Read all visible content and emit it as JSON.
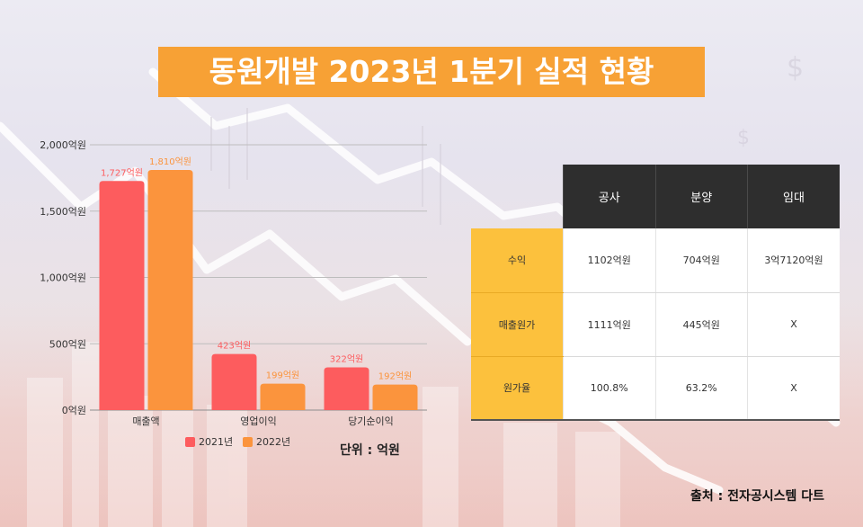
{
  "title": "동원개발 2023년 1분기 실적 현황",
  "unit_label": "단위 : 억원",
  "source": "출처 : 전자공시스템 다트",
  "colors": {
    "series_2021": "#fd5c5e",
    "series_2022": "#fb943d",
    "title_bg": "#f7a135",
    "row_head": "#fcc13d",
    "table_head": "#2e2e2e"
  },
  "chart_data": {
    "type": "bar",
    "categories": [
      "매출액",
      "영업이익",
      "당기순이익"
    ],
    "series": [
      {
        "name": "2021년",
        "values": [
          1727,
          423,
          322
        ],
        "labels": [
          "1,727억원",
          "423억원",
          "322억원"
        ]
      },
      {
        "name": "2022년",
        "values": [
          1810,
          199,
          192
        ],
        "labels": [
          "1,810억원",
          "199억원",
          "192억원"
        ]
      }
    ],
    "ylim": [
      0,
      2000
    ],
    "y_ticks": [
      0,
      500,
      1000,
      1500,
      2000
    ],
    "y_tick_labels": [
      "0억원",
      "500억원",
      "1,000억원",
      "1,500억원",
      "2,000억원"
    ],
    "grid": true,
    "legend": "bottom"
  },
  "table": {
    "headers": [
      "공사",
      "분양",
      "임대"
    ],
    "rows": [
      {
        "label": "수익",
        "cells": [
          "1102억원",
          "704억원",
          "3억7120억원"
        ]
      },
      {
        "label": "매출원가",
        "cells": [
          "1111억원",
          "445억원",
          "X"
        ]
      },
      {
        "label": "원가율",
        "cells": [
          "100.8%",
          "63.2%",
          "X"
        ]
      }
    ]
  }
}
